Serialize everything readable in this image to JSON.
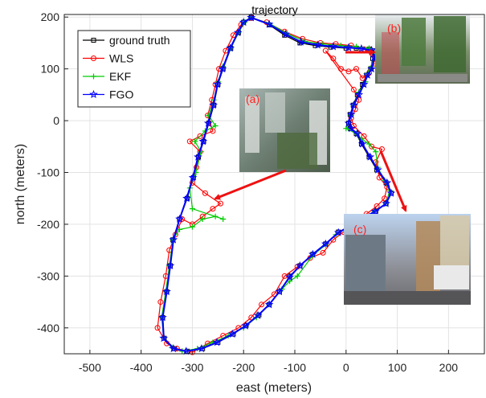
{
  "chart_data": {
    "type": "line",
    "title": "trajectory",
    "xlabel": "east (meters)",
    "ylabel": "north (meters)",
    "xlim": [
      -550,
      270
    ],
    "ylim": [
      -450,
      205
    ],
    "xticks": [
      -500,
      -400,
      -300,
      -200,
      -100,
      0,
      100,
      200
    ],
    "yticks": [
      -400,
      -300,
      -200,
      -100,
      0,
      100,
      200
    ],
    "grid": true,
    "legend_position": "top-left",
    "series": [
      {
        "name": "ground truth",
        "color": "#000000",
        "marker": "square",
        "points": [
          [
            -185,
            200
          ],
          [
            -150,
            185
          ],
          [
            -120,
            165
          ],
          [
            -90,
            150
          ],
          [
            -60,
            145
          ],
          [
            -30,
            142
          ],
          [
            0,
            140
          ],
          [
            20,
            140
          ],
          [
            45,
            138
          ],
          [
            55,
            135
          ],
          [
            52,
            120
          ],
          [
            48,
            100
          ],
          [
            40,
            88
          ],
          [
            32,
            70
          ],
          [
            22,
            50
          ],
          [
            14,
            30
          ],
          [
            8,
            12
          ],
          [
            5,
            -5
          ],
          [
            8,
            -15
          ],
          [
            20,
            -25
          ],
          [
            30,
            -45
          ],
          [
            45,
            -70
          ],
          [
            60,
            -95
          ],
          [
            78,
            -120
          ],
          [
            88,
            -140
          ],
          [
            78,
            -160
          ],
          [
            58,
            -175
          ],
          [
            30,
            -190
          ],
          [
            5,
            -205
          ],
          [
            -15,
            -215
          ],
          [
            -40,
            -238
          ],
          [
            -65,
            -258
          ],
          [
            -90,
            -280
          ],
          [
            -110,
            -300
          ],
          [
            -130,
            -330
          ],
          [
            -150,
            -355
          ],
          [
            -170,
            -375
          ],
          [
            -195,
            -395
          ],
          [
            -220,
            -412
          ],
          [
            -250,
            -428
          ],
          [
            -280,
            -440
          ],
          [
            -310,
            -445
          ],
          [
            -335,
            -440
          ],
          [
            -355,
            -420
          ],
          [
            -358,
            -380
          ],
          [
            -350,
            -330
          ],
          [
            -343,
            -280
          ],
          [
            -338,
            -230
          ],
          [
            -325,
            -190
          ],
          [
            -310,
            -150
          ],
          [
            -298,
            -110
          ],
          [
            -288,
            -70
          ],
          [
            -278,
            -40
          ],
          [
            -268,
            -5
          ],
          [
            -258,
            30
          ],
          [
            -250,
            70
          ],
          [
            -240,
            100
          ],
          [
            -225,
            140
          ],
          [
            -210,
            170
          ],
          [
            -200,
            190
          ],
          [
            -185,
            200
          ]
        ]
      },
      {
        "name": "WLS",
        "color": "#ff0000",
        "marker": "circle",
        "points": [
          [
            -185,
            198
          ],
          [
            -155,
            190
          ],
          [
            -120,
            172
          ],
          [
            -85,
            158
          ],
          [
            -50,
            150
          ],
          [
            -20,
            148
          ],
          [
            10,
            145
          ],
          [
            35,
            138
          ],
          [
            50,
            130
          ],
          [
            55,
            110
          ],
          [
            45,
            92
          ],
          [
            32,
            82
          ],
          [
            20,
            100
          ],
          [
            5,
            95
          ],
          [
            -10,
            100
          ],
          [
            -25,
            120
          ],
          [
            -40,
            135
          ],
          [
            15,
            60
          ],
          [
            25,
            40
          ],
          [
            18,
            22
          ],
          [
            10,
            5
          ],
          [
            15,
            -10
          ],
          [
            35,
            -30
          ],
          [
            50,
            -50
          ],
          [
            70,
            -55
          ],
          [
            58,
            -80
          ],
          [
            65,
            -110
          ],
          [
            80,
            -128
          ],
          [
            75,
            -150
          ],
          [
            60,
            -165
          ],
          [
            40,
            -180
          ],
          [
            15,
            -195
          ],
          [
            -5,
            -215
          ],
          [
            -25,
            -230
          ],
          [
            -45,
            -255
          ],
          [
            -70,
            -265
          ],
          [
            -95,
            -282
          ],
          [
            -120,
            -300
          ],
          [
            -140,
            -335
          ],
          [
            -165,
            -355
          ],
          [
            -185,
            -380
          ],
          [
            -210,
            -400
          ],
          [
            -240,
            -415
          ],
          [
            -270,
            -430
          ],
          [
            -300,
            -447
          ],
          [
            -330,
            -440
          ],
          [
            -350,
            -430
          ],
          [
            -368,
            -400
          ],
          [
            -362,
            -350
          ],
          [
            -352,
            -300
          ],
          [
            -345,
            -250
          ],
          [
            -333,
            -220
          ],
          [
            -320,
            -190
          ],
          [
            -300,
            -200
          ],
          [
            -280,
            -185
          ],
          [
            -260,
            -170
          ],
          [
            -245,
            -160
          ],
          [
            -275,
            -140
          ],
          [
            -300,
            -120
          ],
          [
            -292,
            -90
          ],
          [
            -285,
            -60
          ],
          [
            -305,
            -40
          ],
          [
            -285,
            -30
          ],
          [
            -260,
            -20
          ],
          [
            -270,
            10
          ],
          [
            -262,
            40
          ],
          [
            -255,
            70
          ],
          [
            -248,
            100
          ],
          [
            -235,
            135
          ],
          [
            -220,
            165
          ],
          [
            -205,
            185
          ],
          [
            -185,
            198
          ]
        ]
      },
      {
        "name": "EKF",
        "color": "#00cc00",
        "marker": "plus",
        "points": [
          [
            -185,
            199
          ],
          [
            -150,
            188
          ],
          [
            -115,
            168
          ],
          [
            -80,
            153
          ],
          [
            -45,
            148
          ],
          [
            -10,
            145
          ],
          [
            20,
            143
          ],
          [
            45,
            140
          ],
          [
            55,
            128
          ],
          [
            50,
            105
          ],
          [
            42,
            92
          ],
          [
            38,
            75
          ],
          [
            25,
            55
          ],
          [
            15,
            30
          ],
          [
            10,
            10
          ],
          [
            0,
            -15
          ],
          [
            20,
            -25
          ],
          [
            30,
            -35
          ],
          [
            45,
            -45
          ],
          [
            58,
            -60
          ],
          [
            62,
            -90
          ],
          [
            75,
            -115
          ],
          [
            85,
            -135
          ],
          [
            78,
            -160
          ],
          [
            55,
            -175
          ],
          [
            28,
            -192
          ],
          [
            3,
            -207
          ],
          [
            -20,
            -220
          ],
          [
            -40,
            -240
          ],
          [
            -65,
            -260
          ],
          [
            -95,
            -300
          ],
          [
            -110,
            -310
          ],
          [
            -125,
            -325
          ],
          [
            -150,
            -355
          ],
          [
            -175,
            -380
          ],
          [
            -200,
            -400
          ],
          [
            -230,
            -415
          ],
          [
            -260,
            -428
          ],
          [
            -290,
            -440
          ],
          [
            -320,
            -445
          ],
          [
            -340,
            -438
          ],
          [
            -356,
            -418
          ],
          [
            -360,
            -380
          ],
          [
            -352,
            -330
          ],
          [
            -345,
            -280
          ],
          [
            -338,
            -230
          ],
          [
            -325,
            -210
          ],
          [
            -300,
            -205
          ],
          [
            -280,
            -190
          ],
          [
            -255,
            -185
          ],
          [
            -240,
            -190
          ],
          [
            -300,
            -170
          ],
          [
            -305,
            -130
          ],
          [
            -293,
            -100
          ],
          [
            -283,
            -60
          ],
          [
            -295,
            -40
          ],
          [
            -275,
            -20
          ],
          [
            -255,
            -10
          ],
          [
            -268,
            10
          ],
          [
            -258,
            40
          ],
          [
            -250,
            75
          ],
          [
            -240,
            105
          ],
          [
            -225,
            140
          ],
          [
            -210,
            170
          ],
          [
            -198,
            190
          ],
          [
            -185,
            199
          ]
        ]
      },
      {
        "name": "FGO",
        "color": "#0000ff",
        "marker": "star",
        "points": [
          [
            -185,
            199
          ],
          [
            -150,
            186
          ],
          [
            -118,
            167
          ],
          [
            -88,
            152
          ],
          [
            -55,
            146
          ],
          [
            -25,
            143
          ],
          [
            5,
            141
          ],
          [
            30,
            139
          ],
          [
            50,
            136
          ],
          [
            55,
            122
          ],
          [
            50,
            100
          ],
          [
            42,
            88
          ],
          [
            35,
            70
          ],
          [
            25,
            50
          ],
          [
            15,
            30
          ],
          [
            10,
            12
          ],
          [
            5,
            -5
          ],
          [
            10,
            -15
          ],
          [
            22,
            -25
          ],
          [
            32,
            -45
          ],
          [
            47,
            -70
          ],
          [
            62,
            -95
          ],
          [
            80,
            -120
          ],
          [
            88,
            -140
          ],
          [
            78,
            -160
          ],
          [
            57,
            -175
          ],
          [
            30,
            -190
          ],
          [
            5,
            -205
          ],
          [
            -15,
            -216
          ],
          [
            -40,
            -238
          ],
          [
            -65,
            -258
          ],
          [
            -90,
            -280
          ],
          [
            -110,
            -302
          ],
          [
            -130,
            -330
          ],
          [
            -150,
            -355
          ],
          [
            -172,
            -376
          ],
          [
            -196,
            -396
          ],
          [
            -222,
            -412
          ],
          [
            -252,
            -428
          ],
          [
            -282,
            -440
          ],
          [
            -312,
            -445
          ],
          [
            -337,
            -440
          ],
          [
            -356,
            -420
          ],
          [
            -358,
            -380
          ],
          [
            -350,
            -330
          ],
          [
            -343,
            -280
          ],
          [
            -337,
            -230
          ],
          [
            -325,
            -190
          ],
          [
            -311,
            -150
          ],
          [
            -299,
            -110
          ],
          [
            -289,
            -70
          ],
          [
            -279,
            -40
          ],
          [
            -269,
            -5
          ],
          [
            -259,
            30
          ],
          [
            -251,
            70
          ],
          [
            -241,
            100
          ],
          [
            -226,
            140
          ],
          [
            -211,
            170
          ],
          [
            -200,
            190
          ],
          [
            -185,
            199
          ]
        ]
      }
    ],
    "annotations": [
      {
        "label": "(a)"
      },
      {
        "label": "(b)"
      },
      {
        "label": "(c)"
      }
    ]
  }
}
